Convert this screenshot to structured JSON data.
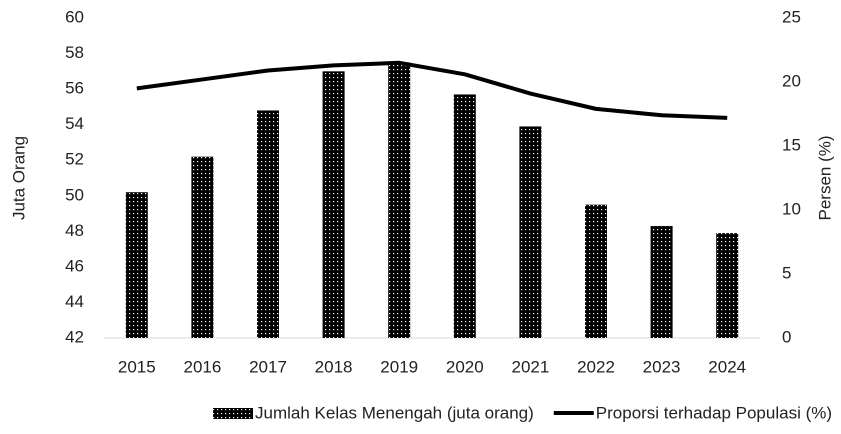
{
  "chart_data": {
    "type": "bar_line",
    "y_label": "Juta Orang",
    "y2_label": "Persen (%)",
    "categories": [
      "2015",
      "2016",
      "2017",
      "2018",
      "2019",
      "2020",
      "2021",
      "2022",
      "2023",
      "2024"
    ],
    "series": [
      {
        "name": "Jumlah Kelas Menengah (juta orang)",
        "type": "bar",
        "color": "#000000",
        "values": [
          50.2,
          52.2,
          54.8,
          57.0,
          57.5,
          55.7,
          53.9,
          49.5,
          48.3,
          47.9
        ]
      },
      {
        "name": "Proporsi terhadap Populasi (%)",
        "type": "line",
        "axis": "y2",
        "color": "#000000",
        "values": [
          19.5,
          20.2,
          20.9,
          21.3,
          21.5,
          20.6,
          19.1,
          17.9,
          17.4,
          17.2
        ]
      }
    ],
    "ylim": [
      42,
      60
    ],
    "yticks": [
      42,
      44,
      46,
      48,
      50,
      52,
      54,
      56,
      58,
      60
    ],
    "y2lim": [
      0,
      25
    ],
    "y2ticks": [
      0,
      5,
      10,
      15,
      20,
      25
    ]
  }
}
